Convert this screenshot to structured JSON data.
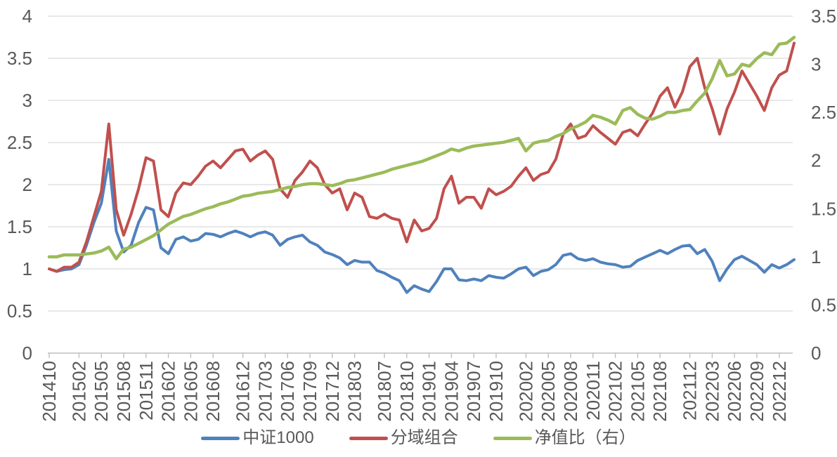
{
  "chart_data": {
    "type": "line",
    "title": "",
    "grid": true,
    "background": "#FFFFFF",
    "legend_position": "bottom",
    "x_unit": "month",
    "x": [
      "2014-10",
      "2014-11",
      "2014-12",
      "2015-01",
      "2015-02",
      "2015-03",
      "2015-04",
      "2015-05",
      "2015-06",
      "2015-07",
      "2015-08",
      "2015-09",
      "2015-10",
      "2015-11",
      "2015-12",
      "2016-01",
      "2016-02",
      "2016-03",
      "2016-04",
      "2016-05",
      "2016-06",
      "2016-07",
      "2016-08",
      "2016-09",
      "2016-10",
      "2016-11",
      "2016-12",
      "2017-01",
      "2017-02",
      "2017-03",
      "2017-04",
      "2017-05",
      "2017-06",
      "2017-07",
      "2017-08",
      "2017-09",
      "2017-10",
      "2017-11",
      "2017-12",
      "2018-01",
      "2018-02",
      "2018-03",
      "2018-04",
      "2018-05",
      "2018-06",
      "2018-07",
      "2018-08",
      "2018-09",
      "2018-10",
      "2018-11",
      "2018-12",
      "2019-01",
      "2019-02",
      "2019-03",
      "2019-04",
      "2019-05",
      "2019-06",
      "2019-07",
      "2019-08",
      "2019-09",
      "2019-10",
      "2019-11",
      "2019-12",
      "2020-01",
      "2020-02",
      "2020-03",
      "2020-04",
      "2020-05",
      "2020-06",
      "2020-07",
      "2020-08",
      "2020-09",
      "2020-10",
      "2020-11",
      "2020-12",
      "2021-01",
      "2021-02",
      "2021-03",
      "2021-04",
      "2021-05",
      "2021-06",
      "2021-07",
      "2021-08",
      "2021-09",
      "2021-10",
      "2021-11",
      "2021-12",
      "2022-01",
      "2022-02",
      "2022-03",
      "2022-04",
      "2022-05",
      "2022-06",
      "2022-07",
      "2022-08",
      "2022-09",
      "2022-10",
      "2022-11",
      "2022-12",
      "2023-01",
      "2023-02"
    ],
    "x_axis_tick_labels": [
      "201410",
      "201502",
      "201505",
      "201508",
      "201511",
      "201602",
      "201605",
      "201608",
      "201612",
      "201703",
      "201706",
      "201709",
      "201712",
      "201803",
      "201807",
      "201810",
      "201901",
      "201904",
      "201907",
      "201910",
      "202002",
      "202005",
      "202008",
      "202011",
      "202102",
      "202105",
      "202108",
      "202112",
      "202203",
      "202206",
      "202209",
      "202212"
    ],
    "x_axis_tick_month_index": [
      0,
      4,
      7,
      10,
      13,
      16,
      19,
      22,
      26,
      29,
      32,
      35,
      38,
      41,
      45,
      48,
      51,
      54,
      57,
      60,
      64,
      67,
      70,
      73,
      76,
      79,
      82,
      86,
      89,
      92,
      95,
      98
    ],
    "left_axis": {
      "min": 0,
      "max": 4,
      "step": 0.5,
      "tick_labels": [
        "0",
        "0.5",
        "1",
        "1.5",
        "2",
        "2.5",
        "3",
        "3.5",
        "4"
      ]
    },
    "right_axis": {
      "min": 0,
      "max": 3.5,
      "step": 0.5,
      "tick_labels": [
        "0",
        "0.5",
        "1",
        "1.5",
        "2",
        "2.5",
        "3",
        "3.5"
      ]
    },
    "series": [
      {
        "id": "csi1000",
        "name": "中证1000",
        "axis": "left",
        "color": "#4F81BD",
        "values": [
          1.0,
          0.97,
          0.99,
          1.0,
          1.05,
          1.28,
          1.55,
          1.78,
          2.3,
          1.45,
          1.2,
          1.28,
          1.55,
          1.73,
          1.7,
          1.25,
          1.18,
          1.35,
          1.38,
          1.33,
          1.35,
          1.42,
          1.41,
          1.38,
          1.42,
          1.45,
          1.42,
          1.38,
          1.42,
          1.44,
          1.4,
          1.28,
          1.35,
          1.38,
          1.4,
          1.32,
          1.28,
          1.2,
          1.17,
          1.13,
          1.05,
          1.1,
          1.08,
          1.08,
          0.98,
          0.95,
          0.9,
          0.86,
          0.72,
          0.8,
          0.76,
          0.73,
          0.85,
          1.0,
          1.0,
          0.87,
          0.86,
          0.88,
          0.86,
          0.92,
          0.9,
          0.89,
          0.94,
          1.0,
          1.02,
          0.92,
          0.97,
          0.99,
          1.05,
          1.16,
          1.18,
          1.12,
          1.1,
          1.12,
          1.08,
          1.06,
          1.05,
          1.02,
          1.03,
          1.1,
          1.14,
          1.18,
          1.22,
          1.18,
          1.23,
          1.27,
          1.28,
          1.18,
          1.23,
          1.09,
          0.86,
          1.0,
          1.11,
          1.15,
          1.1,
          1.05,
          0.96,
          1.05,
          1.01,
          1.05,
          1.11
        ]
      },
      {
        "id": "sub-domain-portfolio",
        "name": "分域组合",
        "axis": "left",
        "color": "#C0504D",
        "values": [
          1.0,
          0.97,
          1.02,
          1.02,
          1.08,
          1.32,
          1.62,
          1.92,
          2.72,
          1.7,
          1.4,
          1.65,
          1.95,
          2.32,
          2.28,
          1.7,
          1.62,
          1.9,
          2.02,
          2.0,
          2.1,
          2.22,
          2.28,
          2.2,
          2.3,
          2.4,
          2.42,
          2.28,
          2.35,
          2.4,
          2.3,
          1.95,
          1.85,
          2.05,
          2.15,
          2.28,
          2.2,
          2.0,
          1.9,
          1.95,
          1.7,
          1.9,
          1.85,
          1.62,
          1.6,
          1.65,
          1.6,
          1.58,
          1.32,
          1.58,
          1.45,
          1.48,
          1.6,
          1.95,
          2.1,
          1.78,
          1.85,
          1.85,
          1.72,
          1.95,
          1.88,
          1.92,
          1.98,
          2.1,
          2.2,
          2.05,
          2.12,
          2.15,
          2.3,
          2.6,
          2.72,
          2.55,
          2.58,
          2.7,
          2.62,
          2.55,
          2.48,
          2.62,
          2.65,
          2.58,
          2.72,
          2.85,
          3.05,
          3.15,
          2.92,
          3.1,
          3.4,
          3.5,
          3.15,
          2.9,
          2.6,
          2.9,
          3.1,
          3.35,
          3.2,
          3.05,
          2.88,
          3.15,
          3.3,
          3.35,
          3.68
        ]
      },
      {
        "id": "nav-ratio",
        "name": "净值比（右）",
        "axis": "right",
        "color": "#9BBB59",
        "values": [
          1.0,
          1.0,
          1.02,
          1.02,
          1.02,
          1.03,
          1.04,
          1.06,
          1.1,
          0.98,
          1.08,
          1.1,
          1.14,
          1.18,
          1.22,
          1.28,
          1.34,
          1.38,
          1.42,
          1.44,
          1.47,
          1.5,
          1.52,
          1.55,
          1.57,
          1.6,
          1.63,
          1.64,
          1.66,
          1.67,
          1.68,
          1.7,
          1.72,
          1.73,
          1.75,
          1.76,
          1.76,
          1.75,
          1.74,
          1.76,
          1.79,
          1.8,
          1.82,
          1.84,
          1.86,
          1.88,
          1.91,
          1.93,
          1.95,
          1.97,
          1.99,
          2.02,
          2.05,
          2.08,
          2.12,
          2.1,
          2.13,
          2.15,
          2.16,
          2.17,
          2.18,
          2.19,
          2.21,
          2.23,
          2.1,
          2.18,
          2.2,
          2.21,
          2.25,
          2.28,
          2.33,
          2.36,
          2.4,
          2.47,
          2.45,
          2.42,
          2.38,
          2.52,
          2.55,
          2.48,
          2.44,
          2.43,
          2.46,
          2.5,
          2.5,
          2.52,
          2.53,
          2.62,
          2.7,
          2.85,
          3.04,
          2.88,
          2.9,
          3.0,
          2.98,
          3.06,
          3.12,
          3.1,
          3.21,
          3.22,
          3.28
        ]
      }
    ],
    "style_colors": {
      "gridline": "#D9D9D9",
      "axis_line": "#BFBFBF",
      "tick": "#BFBFBF",
      "axis_label": "#595959",
      "legend_label": "#595959"
    }
  }
}
